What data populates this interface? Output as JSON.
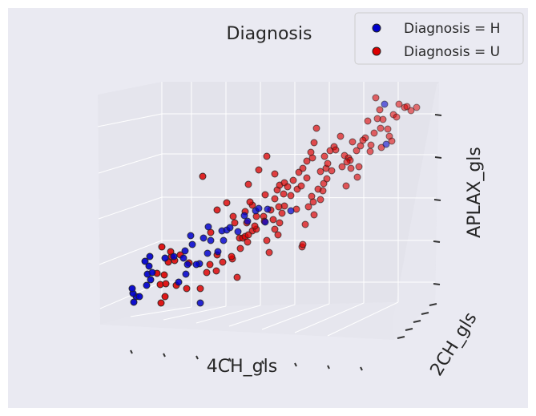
{
  "chart_data": {
    "type": "scatter",
    "title": "Diagnosis",
    "xlabel": "4CH_gls",
    "ylabel": "2CH_gls",
    "zlabel": "APLAX_gls",
    "legend_position": "top-right",
    "grid": true,
    "projection": "3d",
    "series": [
      {
        "name": "Diagnosis = H",
        "color": "#0000cc",
        "points": [
          [
            167,
            377
          ],
          [
            170,
            370
          ],
          [
            174,
            370
          ],
          [
            166,
            366
          ],
          [
            165,
            360
          ],
          [
            183,
            356
          ],
          [
            188,
            349
          ],
          [
            184,
            342
          ],
          [
            190,
            340
          ],
          [
            181,
            326
          ],
          [
            187,
            320
          ],
          [
            186,
            332
          ],
          [
            206,
            322
          ],
          [
            217,
            320
          ],
          [
            231,
            313
          ],
          [
            229,
            322
          ],
          [
            238,
            294
          ],
          [
            240,
            305
          ],
          [
            234,
            330
          ],
          [
            223,
            352
          ],
          [
            232,
            342
          ],
          [
            249,
            329
          ],
          [
            259,
            316
          ],
          [
            263,
            300
          ],
          [
            272,
            314
          ],
          [
            254,
            297
          ],
          [
            260,
            283
          ],
          [
            279,
            300
          ],
          [
            277,
            288
          ],
          [
            283,
            287
          ],
          [
            287,
            284
          ],
          [
            297,
            289
          ],
          [
            305,
            269
          ],
          [
            309,
            276
          ],
          [
            319,
            263
          ],
          [
            334,
            261
          ],
          [
            323,
            260
          ],
          [
            331,
            277
          ],
          [
            363,
            263
          ],
          [
            245,
            330
          ],
          [
            250,
            378
          ],
          [
            480,
            130
          ],
          [
            482,
            180
          ]
        ]
      },
      {
        "name": "Diagnosis = U",
        "color": "#dd0000",
        "points": [
          [
            253,
            220
          ],
          [
            214,
            320
          ],
          [
            202,
            308
          ],
          [
            218,
            325
          ],
          [
            205,
            343
          ],
          [
            200,
            355
          ],
          [
            207,
            354
          ],
          [
            220,
            356
          ],
          [
            233,
            360
          ],
          [
            201,
            378
          ],
          [
            206,
            370
          ],
          [
            250,
            360
          ],
          [
            258,
            340
          ],
          [
            270,
            338
          ],
          [
            271,
            318
          ],
          [
            290,
            323
          ],
          [
            289,
            320
          ],
          [
            296,
            346
          ],
          [
            299,
            297
          ],
          [
            303,
            297
          ],
          [
            306,
            295
          ],
          [
            309,
            302
          ],
          [
            315,
            288
          ],
          [
            320,
            270
          ],
          [
            315,
            256
          ],
          [
            310,
            230
          ],
          [
            312,
            252
          ],
          [
            323,
            212
          ],
          [
            333,
            195
          ],
          [
            331,
            243
          ],
          [
            338,
            262
          ],
          [
            343,
            248
          ],
          [
            346,
            237
          ],
          [
            354,
            242
          ],
          [
            343,
            217
          ],
          [
            349,
            231
          ],
          [
            355,
            228
          ],
          [
            341,
            274
          ],
          [
            349,
            278
          ],
          [
            347,
            293
          ],
          [
            352,
            266
          ],
          [
            359,
            233
          ],
          [
            366,
            225
          ],
          [
            371,
            236
          ],
          [
            376,
            232
          ],
          [
            373,
            215
          ],
          [
            378,
            210
          ],
          [
            383,
            222
          ],
          [
            383,
            201
          ],
          [
            390,
            197
          ],
          [
            388,
            190
          ],
          [
            392,
            178
          ],
          [
            395,
            160
          ],
          [
            400,
            214
          ],
          [
            407,
            210
          ],
          [
            404,
            229
          ],
          [
            400,
            249
          ],
          [
            389,
            245
          ],
          [
            392,
            268
          ],
          [
            377,
            308
          ],
          [
            336,
            315
          ],
          [
            333,
            300
          ],
          [
            306,
            264
          ],
          [
            291,
            270
          ],
          [
            271,
            262
          ],
          [
            263,
            290
          ],
          [
            283,
            253
          ],
          [
            293,
            278
          ],
          [
            378,
            305
          ],
          [
            381,
            280
          ],
          [
            405,
            195
          ],
          [
            409,
            204
          ],
          [
            412,
            188
          ],
          [
            417,
            183
          ],
          [
            419,
            187
          ],
          [
            427,
            208
          ],
          [
            430,
            194
          ],
          [
            435,
            197
          ],
          [
            437,
            200
          ],
          [
            440,
            177
          ],
          [
            445,
            188
          ],
          [
            450,
            182
          ],
          [
            425,
            170
          ],
          [
            432,
            232
          ],
          [
            446,
            221
          ],
          [
            456,
            172
          ],
          [
            459,
            151
          ],
          [
            467,
            166
          ],
          [
            462,
            189
          ],
          [
            471,
            148
          ],
          [
            469,
            122
          ],
          [
            474,
            137
          ],
          [
            478,
            149
          ],
          [
            484,
            161
          ],
          [
            486,
            170
          ],
          [
            491,
            143
          ],
          [
            495,
            146
          ],
          [
            498,
            130
          ],
          [
            505,
            134
          ],
          [
            508,
            133
          ],
          [
            513,
            138
          ],
          [
            520,
            134
          ],
          [
            489,
            176
          ],
          [
            475,
            160
          ],
          [
            476,
            184
          ],
          [
            463,
            181
          ],
          [
            453,
            175
          ],
          [
            448,
            208
          ],
          [
            438,
            210
          ],
          [
            433,
            202
          ],
          [
            414,
            213
          ],
          [
            408,
            223
          ],
          [
            403,
            238
          ],
          [
            397,
            236
          ],
          [
            391,
            252
          ],
          [
            385,
            258
          ],
          [
            370,
            261
          ],
          [
            363,
            244
          ],
          [
            355,
            257
          ],
          [
            348,
            258
          ],
          [
            329,
            270
          ],
          [
            320,
            286
          ],
          [
            310,
            293
          ],
          [
            300,
            310
          ],
          [
            278,
            327
          ],
          [
            262,
            330
          ],
          [
            236,
            328
          ],
          [
            225,
            318
          ],
          [
            213,
            314
          ],
          [
            210,
            327
          ],
          [
            196,
            341
          ],
          [
            308,
            278
          ],
          [
            318,
            282
          ],
          [
            330,
            276
          ],
          [
            343,
            286
          ]
        ]
      }
    ]
  }
}
